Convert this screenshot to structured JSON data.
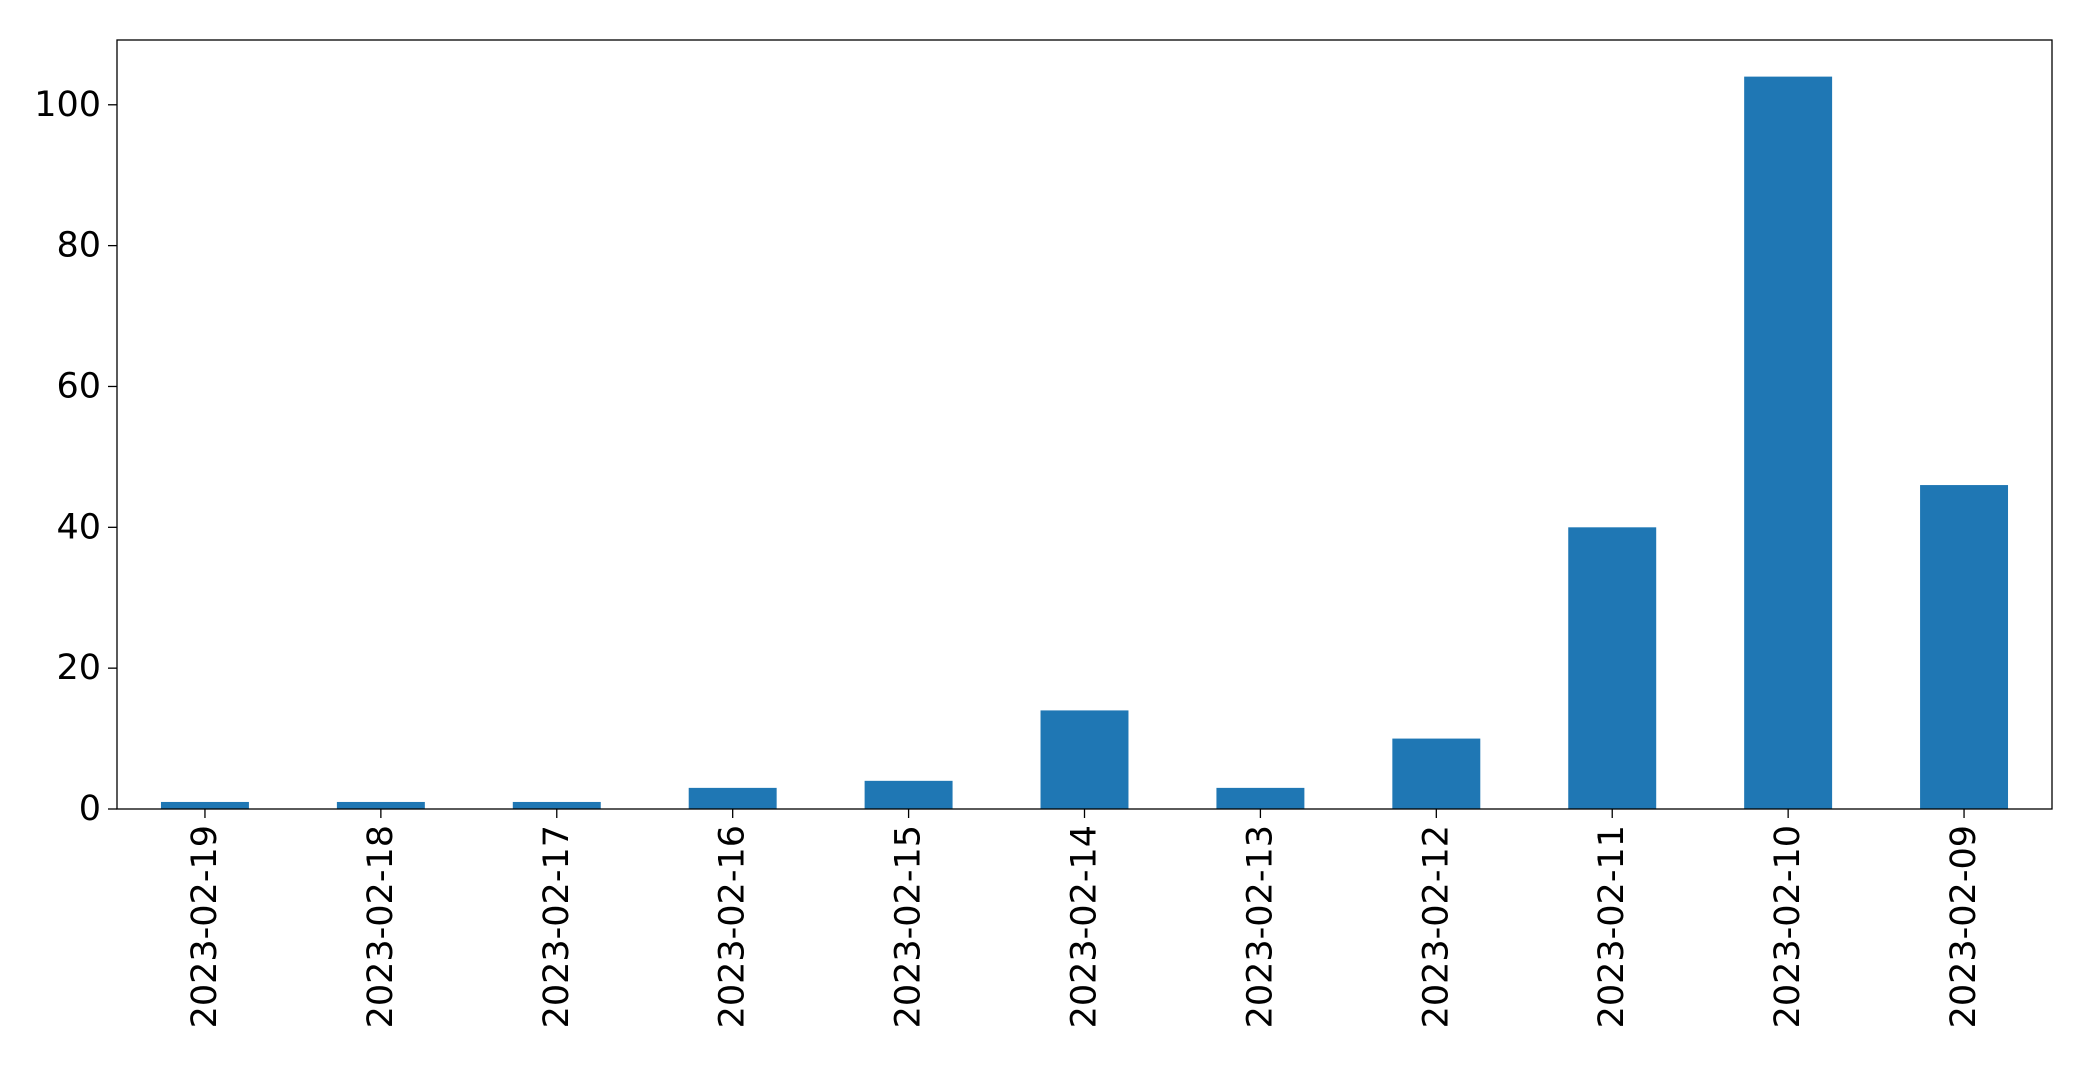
{
  "chart_data": {
    "type": "bar",
    "categories": [
      "2023-02-19",
      "2023-02-18",
      "2023-02-17",
      "2023-02-16",
      "2023-02-15",
      "2023-02-14",
      "2023-02-13",
      "2023-02-12",
      "2023-02-11",
      "2023-02-10",
      "2023-02-09"
    ],
    "values": [
      1,
      1,
      1,
      3,
      4,
      14,
      3,
      10,
      40,
      104,
      46
    ],
    "color": "#1f77b4",
    "ylim": [
      0,
      109.2
    ],
    "yticks": [
      0,
      20,
      40,
      60,
      80,
      100
    ],
    "grid": false
  }
}
